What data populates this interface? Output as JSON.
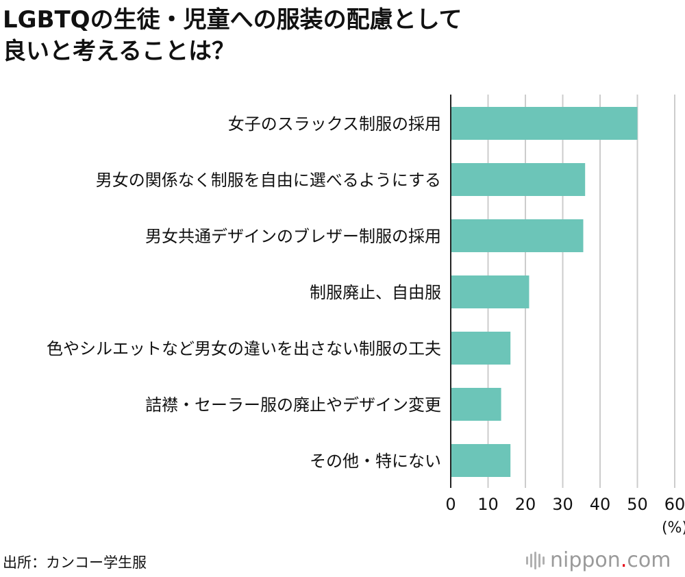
{
  "title": {
    "line1": "LGBTQの生徒・児童への服装の配慮として",
    "line2": "良いと考えることは？"
  },
  "source": "出所：カンコー学生服",
  "logo": {
    "name": "nippon",
    "dot": ".",
    "tld": "com"
  },
  "colors": {
    "bar": "#6cc5b8",
    "grid": "#cccccc",
    "axis": "#222222",
    "text": "#111111"
  },
  "chart_data": {
    "type": "bar",
    "orientation": "horizontal",
    "title": "LGBTQの生徒・児童への服装の配慮として良いと考えることは？",
    "unit_label": "(%)",
    "categories": [
      "女子のスラックス制服の採用",
      "男女の関係なく制服を自由に選べるようにする",
      "男女共通デザインのブレザー制服の採用",
      "制服廃止、自由服",
      "色やシルエットなど男女の違いを出さない制服の工夫",
      "詰襟・セーラー服の廃止やデザイン変更",
      "その他・特にない"
    ],
    "values": [
      50,
      36,
      35.5,
      21,
      16,
      13.5,
      16
    ],
    "xlim": [
      0,
      60
    ],
    "xticks": [
      0,
      10,
      20,
      30,
      40,
      50,
      60
    ],
    "grid": true,
    "legend": "none"
  }
}
